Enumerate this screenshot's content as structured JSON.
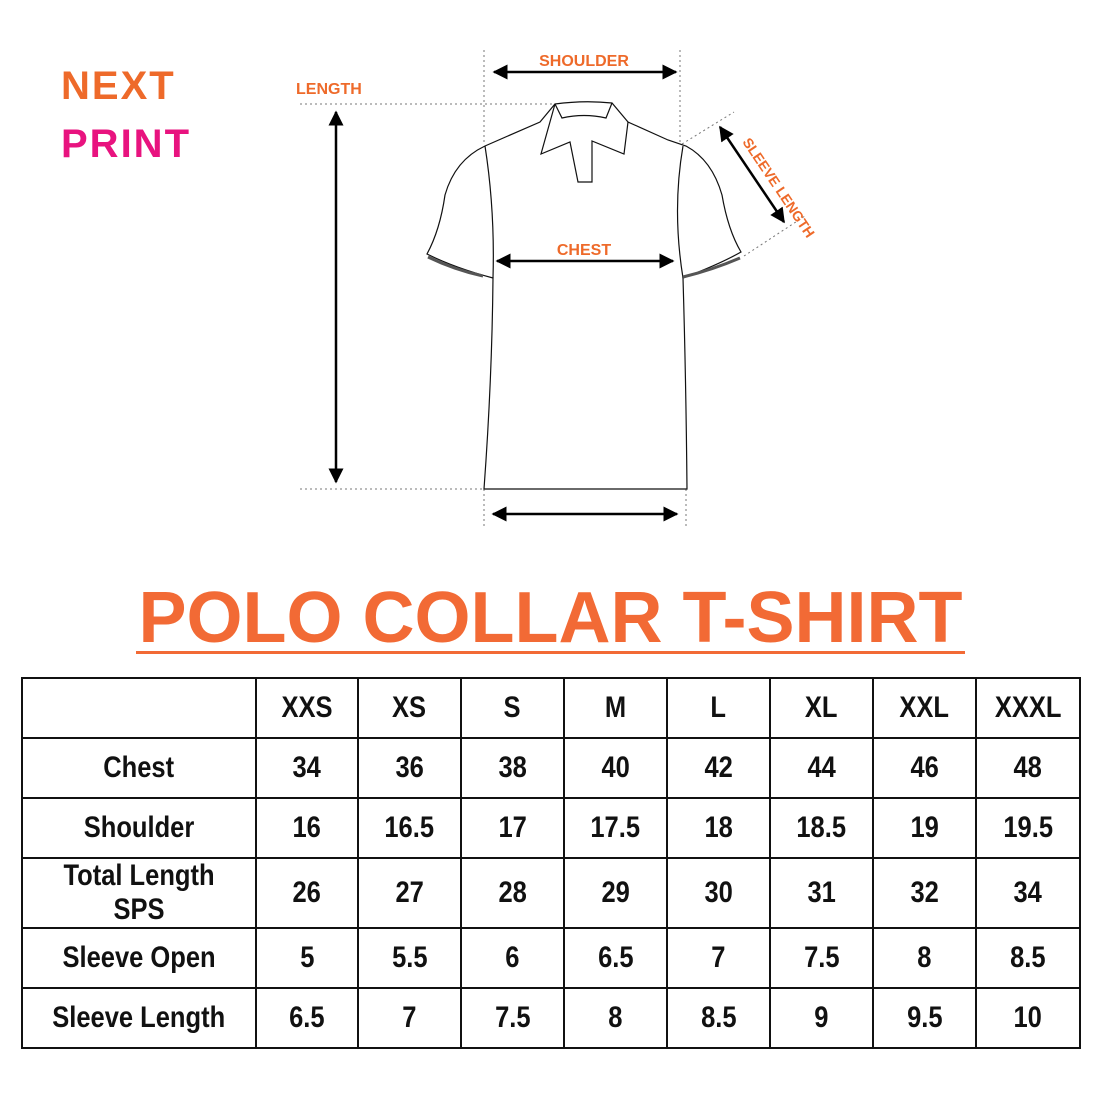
{
  "brand": {
    "line1": "NEXT",
    "line2": "PRINT",
    "colors": {
      "orange": "#ee6a2a",
      "magenta": "#e8137f"
    }
  },
  "diagram": {
    "labels": {
      "length": "LENGTH",
      "shoulder": "SHOULDER",
      "sleeve_length": "SLEEVE LENGTH",
      "chest": "CHEST"
    }
  },
  "title": "POLO COLLAR T-SHIRT",
  "size_table": {
    "columns": [
      "",
      "XXS",
      "XS",
      "S",
      "M",
      "L",
      "XL",
      "XXL",
      "XXXL"
    ],
    "rows": [
      {
        "label": "Chest",
        "values": [
          "34",
          "36",
          "38",
          "40",
          "42",
          "44",
          "46",
          "48"
        ]
      },
      {
        "label": "Shoulder",
        "values": [
          "16",
          "16.5",
          "17",
          "17.5",
          "18",
          "18.5",
          "19",
          "19.5"
        ]
      },
      {
        "label": "Total Length SPS",
        "values": [
          "26",
          "27",
          "28",
          "29",
          "30",
          "31",
          "32",
          "34"
        ]
      },
      {
        "label": "Sleeve Open",
        "values": [
          "5",
          "5.5",
          "6",
          "6.5",
          "7",
          "7.5",
          "8",
          "8.5"
        ]
      },
      {
        "label": "Sleeve Length",
        "values": [
          "6.5",
          "7",
          "7.5",
          "8",
          "8.5",
          "9",
          "9.5",
          "10"
        ]
      }
    ]
  }
}
